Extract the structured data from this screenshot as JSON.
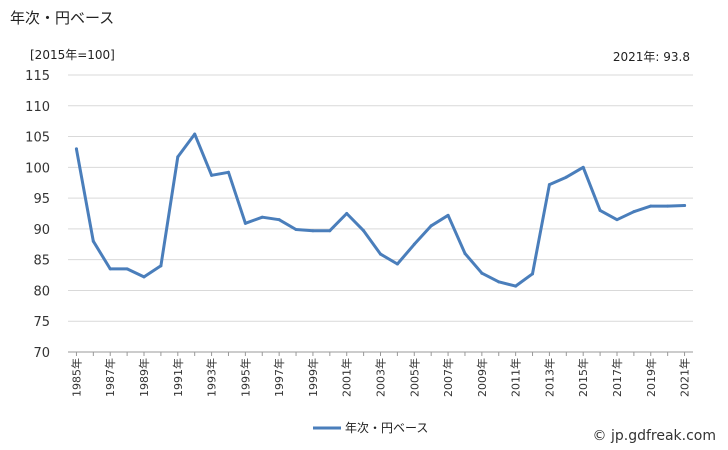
{
  "header": {
    "title": "年次・円ベース",
    "unit": "[2015年=100]",
    "annotation": "2021年: 93.8"
  },
  "footer": {
    "credit": "© jp.gdfreak.com"
  },
  "chart_data": {
    "type": "line",
    "x": [
      "1985年",
      "1986年",
      "1987年",
      "1988年",
      "1989年",
      "1990年",
      "1991年",
      "1992年",
      "1993年",
      "1994年",
      "1995年",
      "1996年",
      "1997年",
      "1998年",
      "1999年",
      "2000年",
      "2001年",
      "2002年",
      "2003年",
      "2004年",
      "2005年",
      "2006年",
      "2007年",
      "2008年",
      "2009年",
      "2010年",
      "2011年",
      "2012年",
      "2013年",
      "2014年",
      "2015年",
      "2016年",
      "2017年",
      "2018年",
      "2019年",
      "2020年",
      "2021年"
    ],
    "x_tick_labels": [
      "1985年",
      "1987年",
      "1989年",
      "1991年",
      "1993年",
      "1995年",
      "1997年",
      "1999年",
      "2001年",
      "2003年",
      "2005年",
      "2007年",
      "2009年",
      "2011年",
      "2013年",
      "2015年",
      "2017年",
      "2019年",
      "2021年"
    ],
    "series": [
      {
        "name": "年次・円ベース",
        "color": "#4a7ebb",
        "values": [
          103.0,
          88.0,
          83.5,
          83.5,
          82.2,
          84.0,
          101.7,
          105.4,
          98.7,
          99.2,
          90.9,
          91.9,
          91.5,
          89.9,
          89.7,
          89.7,
          92.5,
          89.7,
          85.9,
          84.3,
          87.5,
          90.5,
          92.2,
          86.0,
          82.8,
          81.4,
          80.7,
          82.7,
          97.2,
          98.4,
          100.0,
          93.0,
          91.5,
          92.8,
          93.7,
          93.7,
          93.8
        ]
      }
    ],
    "y_ticks": [
      70,
      75,
      80,
      85,
      90,
      95,
      100,
      105,
      110,
      115
    ],
    "ylim": [
      70,
      115
    ],
    "grid": true,
    "legend": "bottom-center"
  }
}
